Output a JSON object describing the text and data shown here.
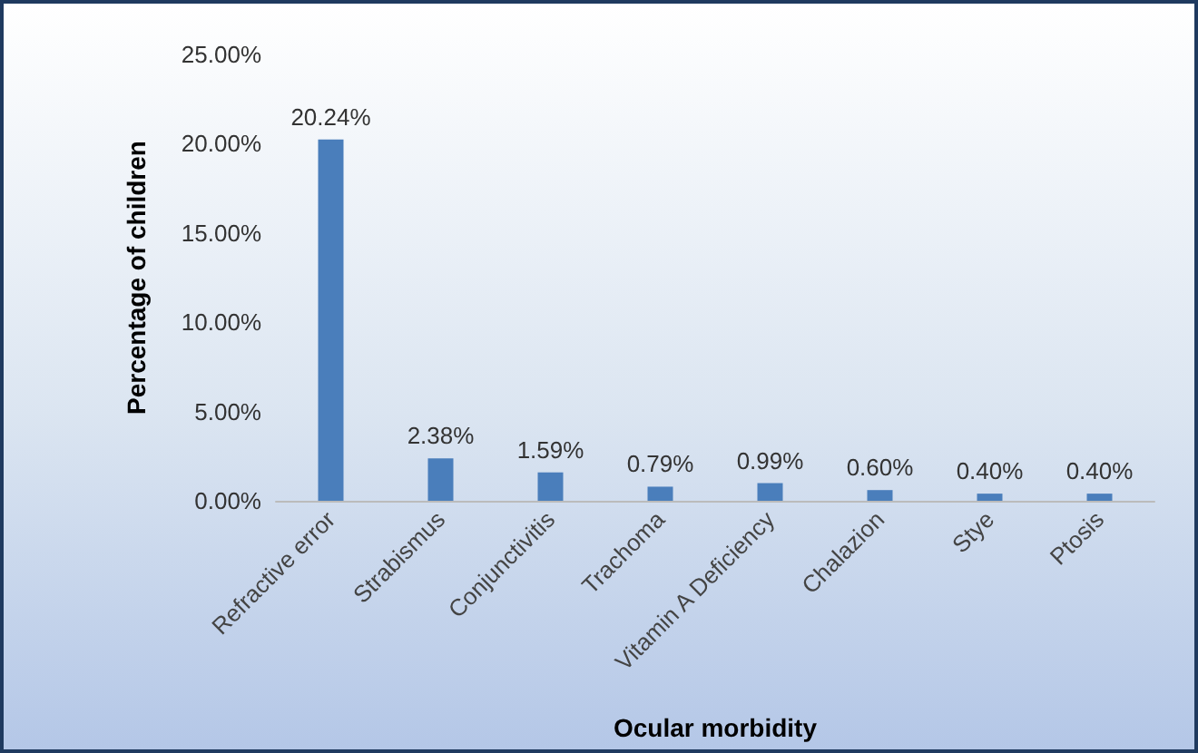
{
  "chart_data": {
    "type": "bar",
    "xlabel": "Ocular morbidity",
    "ylabel": "Percentage of children",
    "categories": [
      "Refractive error",
      "Strabismus",
      "Conjunctivitis",
      "Trachoma",
      "Vitamin A Deficiency",
      "Chalazion",
      "Stye",
      "Ptosis"
    ],
    "values": [
      20.24,
      2.38,
      1.59,
      0.79,
      0.99,
      0.6,
      0.4,
      0.4
    ],
    "value_labels": [
      "20.24%",
      "2.38%",
      "1.59%",
      "0.79%",
      "0.99%",
      "0.60%",
      "0.40%",
      "0.40%"
    ],
    "color": "#4a7ebb",
    "ylim": [
      0,
      25
    ],
    "yticks": [
      {
        "value": 0,
        "label": "0.00%"
      },
      {
        "value": 5,
        "label": "5.00%"
      },
      {
        "value": 10,
        "label": "10.00%"
      },
      {
        "value": 15,
        "label": "15.00%"
      },
      {
        "value": 20,
        "label": "20.00%"
      },
      {
        "value": 25,
        "label": "25.00%"
      }
    ],
    "grid": false
  }
}
